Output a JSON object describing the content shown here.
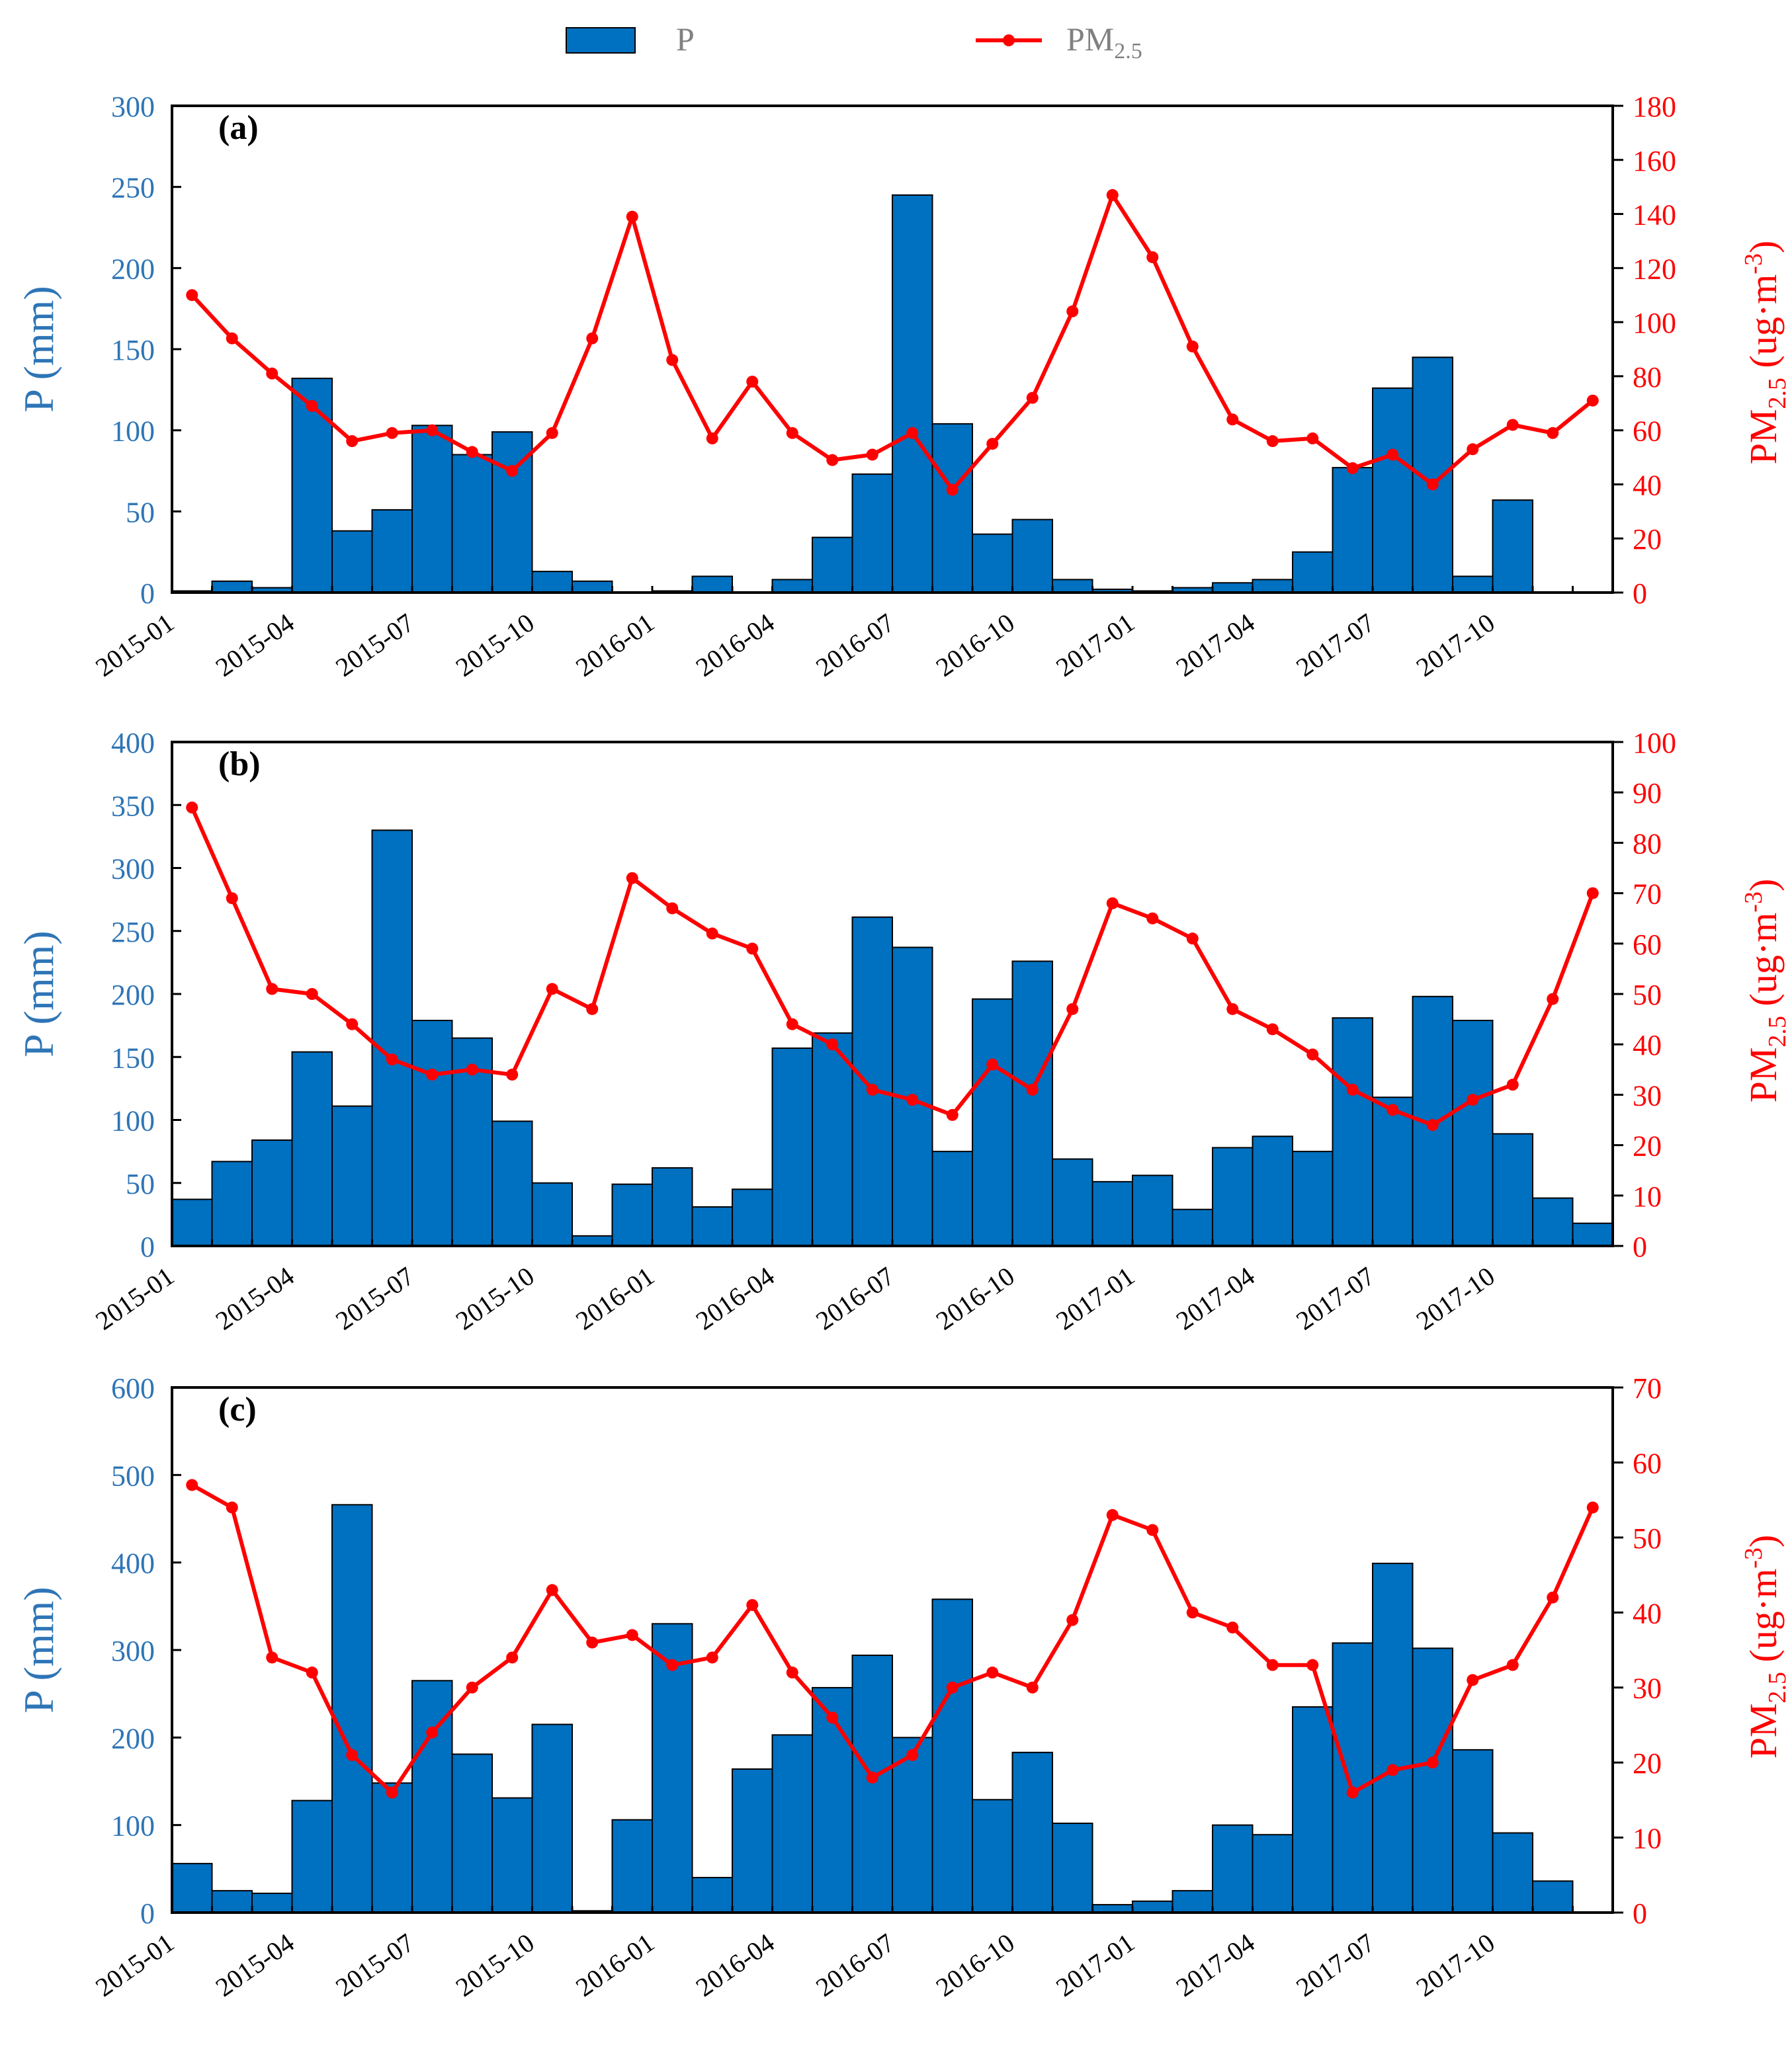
{
  "legend": {
    "bar_label": "P",
    "line_label_main": "PM",
    "line_label_sub": "2.5"
  },
  "colors": {
    "bar": "#0070C0",
    "bar_stroke": "#000000",
    "line": "#FF0000",
    "left_axis": "#2E75B6",
    "right_axis": "#FF0000"
  },
  "months": [
    "2015-01",
    "2015-02",
    "2015-03",
    "2015-04",
    "2015-05",
    "2015-06",
    "2015-07",
    "2015-08",
    "2015-09",
    "2015-10",
    "2015-11",
    "2015-12",
    "2016-01",
    "2016-02",
    "2016-03",
    "2016-04",
    "2016-05",
    "2016-06",
    "2016-07",
    "2016-08",
    "2016-09",
    "2016-10",
    "2016-11",
    "2016-12",
    "2017-01",
    "2017-02",
    "2017-03",
    "2017-04",
    "2017-05",
    "2017-06",
    "2017-07",
    "2017-08",
    "2017-09",
    "2017-10",
    "2017-11",
    "2017-12"
  ],
  "xticks": [
    "2015-01",
    "2015-04",
    "2015-07",
    "2015-10",
    "2016-01",
    "2016-04",
    "2016-07",
    "2016-10",
    "2017-01",
    "2017-04",
    "2017-07",
    "2017-10"
  ],
  "chart_data": [
    {
      "type": "bar",
      "panel_label": "(a)",
      "ylabel_left": "P (mm)",
      "ylabel_right_main": "PM",
      "ylabel_right_sub": "2.5",
      "ylabel_right_unit": " (ug·m",
      "ylabel_right_exp": "-3",
      "ylabel_right_close": ")",
      "ylim_left": [
        0,
        300
      ],
      "yticks_left": [
        0,
        50,
        100,
        150,
        200,
        250,
        300
      ],
      "ylim_right": [
        0,
        180
      ],
      "yticks_right": [
        0,
        20,
        40,
        60,
        80,
        100,
        120,
        140,
        160,
        180
      ],
      "series": [
        {
          "name": "P",
          "type": "bar",
          "axis": "left",
          "values": [
            1,
            7,
            3,
            132,
            38,
            51,
            103,
            85,
            99,
            13,
            7,
            0,
            1,
            10,
            0,
            8,
            34,
            73,
            245,
            104,
            36,
            45,
            8,
            2,
            1,
            3,
            6,
            8,
            25,
            77,
            126,
            145,
            10,
            57,
            0,
            0
          ]
        },
        {
          "name": "PM2.5",
          "type": "line",
          "axis": "right",
          "values": [
            110,
            94,
            81,
            69,
            56,
            59,
            60,
            52,
            45,
            59,
            94,
            139,
            86,
            57,
            78,
            59,
            49,
            51,
            59,
            38,
            55,
            72,
            104,
            147,
            124,
            91,
            64,
            56,
            57,
            46,
            51,
            40,
            53,
            62,
            59,
            71
          ]
        }
      ]
    },
    {
      "type": "bar",
      "panel_label": "(b)",
      "ylabel_left": "P (mm)",
      "ylabel_right_main": "PM",
      "ylabel_right_sub": "2.5",
      "ylabel_right_unit": "  (ug·m",
      "ylabel_right_exp": "-3",
      "ylabel_right_close": ")",
      "ylim_left": [
        0,
        400
      ],
      "yticks_left": [
        0,
        50,
        100,
        150,
        200,
        250,
        300,
        350,
        400
      ],
      "ylim_right": [
        0,
        100
      ],
      "yticks_right": [
        0,
        10,
        20,
        30,
        40,
        50,
        60,
        70,
        80,
        90,
        100
      ],
      "series": [
        {
          "name": "P",
          "type": "bar",
          "axis": "left",
          "values": [
            37,
            67,
            84,
            154,
            111,
            330,
            179,
            165,
            99,
            50,
            8,
            49,
            62,
            31,
            45,
            157,
            169,
            261,
            237,
            75,
            196,
            226,
            69,
            51,
            56,
            29,
            78,
            87,
            75,
            181,
            118,
            198,
            179,
            89,
            38,
            18
          ]
        },
        {
          "name": "PM2.5",
          "type": "line",
          "axis": "right",
          "values": [
            87,
            69,
            51,
            50,
            44,
            37,
            34,
            35,
            34,
            51,
            47,
            73,
            67,
            62,
            59,
            44,
            40,
            31,
            29,
            26,
            36,
            31,
            47,
            68,
            65,
            61,
            47,
            43,
            38,
            31,
            27,
            24,
            29,
            32,
            49,
            70
          ]
        }
      ]
    },
    {
      "type": "bar",
      "panel_label": "(c)",
      "ylabel_left": "P (mm)",
      "ylabel_right_main": "PM",
      "ylabel_right_sub": "2.5",
      "ylabel_right_unit": " (ug·m",
      "ylabel_right_exp": "-3",
      "ylabel_right_close": ")",
      "ylim_left": [
        0,
        600
      ],
      "yticks_left": [
        0,
        100,
        200,
        300,
        400,
        500,
        600
      ],
      "ylim_right": [
        0,
        70
      ],
      "yticks_right": [
        0,
        10,
        20,
        30,
        40,
        50,
        60,
        70
      ],
      "series": [
        {
          "name": "P",
          "type": "bar",
          "axis": "left",
          "values": [
            56,
            25,
            22,
            128,
            466,
            148,
            265,
            181,
            131,
            215,
            2,
            106,
            330,
            40,
            164,
            203,
            257,
            294,
            200,
            358,
            129,
            183,
            102,
            9,
            13,
            25,
            100,
            89,
            235,
            308,
            399,
            302,
            186,
            91,
            36,
            0
          ]
        },
        {
          "name": "PM2.5",
          "type": "line",
          "axis": "right",
          "values": [
            57,
            54,
            34,
            32,
            21,
            16,
            24,
            30,
            34,
            43,
            36,
            37,
            33,
            34,
            41,
            32,
            26,
            18,
            21,
            30,
            32,
            30,
            39,
            53,
            51,
            40,
            38,
            33,
            33,
            16,
            19,
            20,
            31,
            33,
            42,
            54
          ]
        }
      ]
    }
  ]
}
